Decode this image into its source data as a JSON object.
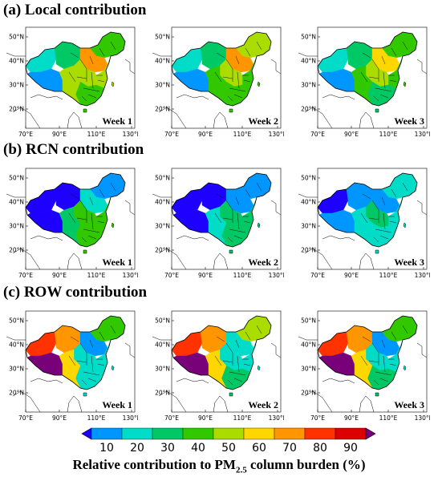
{
  "panels": [
    {
      "title": "(a) Local contribution",
      "weeks": [
        "Week 1",
        "Week 2",
        "Week 3"
      ],
      "fields": [
        {
          "west": 20,
          "tibet": 10,
          "northwest": 30,
          "northeast": 45,
          "north": 75,
          "east": 50,
          "central": 55,
          "south": 40,
          "southwest": 50
        },
        {
          "west": 25,
          "tibet": 15,
          "northwest": 35,
          "northeast": 50,
          "north": 70,
          "east": 45,
          "central": 50,
          "south": 40,
          "southwest": 45
        },
        {
          "west": 20,
          "tibet": 10,
          "northwest": 30,
          "northeast": 45,
          "north": 65,
          "east": 45,
          "central": 50,
          "south": 35,
          "southwest": 40
        }
      ]
    },
    {
      "title": "(b) RCN contribution",
      "weeks": [
        "Week 1",
        "Week 2",
        "Week 3"
      ],
      "fields": [
        {
          "west": 5,
          "tibet": 5,
          "northwest": 8,
          "northeast": 15,
          "north": 20,
          "east": 45,
          "central": 45,
          "south": 40,
          "southwest": 30
        },
        {
          "west": 5,
          "tibet": 5,
          "northwest": 8,
          "northeast": 15,
          "north": 10,
          "east": 30,
          "central": 35,
          "south": 30,
          "southwest": 25
        },
        {
          "west": 5,
          "tibet": 15,
          "northwest": 10,
          "northeast": 20,
          "north": 15,
          "east": 25,
          "central": 30,
          "south": 25,
          "southwest": 20
        }
      ]
    },
    {
      "title": "(c) ROW contribution",
      "weeks": [
        "Week 1",
        "Week 2",
        "Week 3"
      ],
      "fields": [
        {
          "west": 80,
          "tibet": 95,
          "northwest": 70,
          "northeast": 45,
          "north": 15,
          "east": 20,
          "central": 25,
          "south": 25,
          "southwest": 60
        },
        {
          "west": 80,
          "tibet": 95,
          "northwest": 70,
          "northeast": 50,
          "north": 20,
          "east": 25,
          "central": 25,
          "south": 30,
          "southwest": 65
        },
        {
          "west": 80,
          "tibet": 95,
          "northwest": 70,
          "northeast": 45,
          "north": 15,
          "east": 25,
          "central": 25,
          "south": 30,
          "southwest": 65
        }
      ]
    }
  ],
  "axes": {
    "lat_ticks": [
      "50°N",
      "40°N",
      "30°N",
      "20°N"
    ],
    "lon_ticks": [
      "70°E",
      "90°E",
      "110°E",
      "130°E"
    ]
  },
  "colorbar": {
    "ticks": [
      "10",
      "20",
      "30",
      "40",
      "50",
      "60",
      "70",
      "80",
      "90"
    ],
    "colors": [
      "#1e00ff",
      "#0096ff",
      "#00dcc8",
      "#00c864",
      "#32c800",
      "#aadc00",
      "#ffd700",
      "#ff9600",
      "#ff3200",
      "#dc0000",
      "#780078"
    ],
    "label": "Relative contribution to PM",
    "label_sub": "2.5",
    "label_tail": " column burden (%)"
  }
}
